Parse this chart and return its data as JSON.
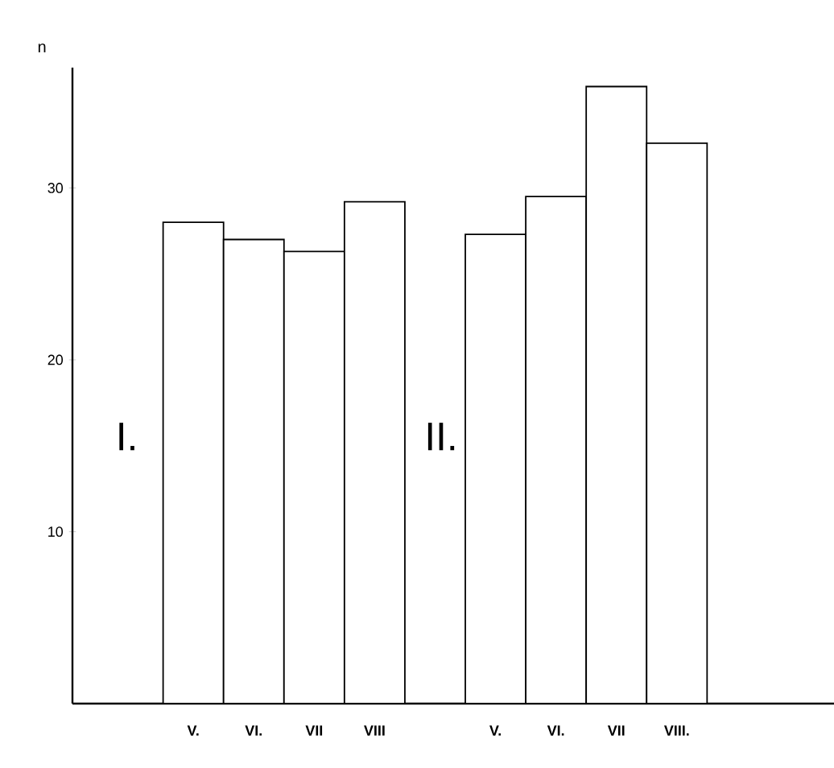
{
  "chart_data": {
    "type": "bar",
    "ylabel": "n",
    "categories": [
      "V.",
      "VI.",
      "VII",
      "VIII",
      null,
      "V.",
      "VI.",
      "VII",
      "VIII."
    ],
    "values": [
      28,
      27,
      26.3,
      29.2,
      null,
      27.3,
      29.5,
      35.9,
      32.6
    ],
    "color": "#000000",
    "ylim": [
      0,
      37
    ],
    "yticks": [
      10,
      20,
      30
    ],
    "annotations": [
      "I.",
      "II."
    ],
    "grid": false
  }
}
